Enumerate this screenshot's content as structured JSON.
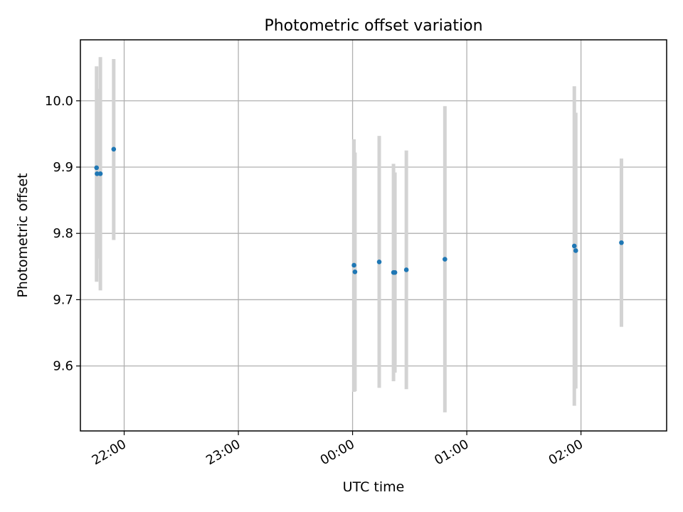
{
  "chart_data": {
    "type": "scatter",
    "title": "Photometric offset variation",
    "xlabel": "UTC time",
    "ylabel": "Photometric offset",
    "grid": true,
    "legend": "none",
    "x_ticks": [
      "22:00",
      "23:00",
      "00:00",
      "01:00",
      "02:00"
    ],
    "y_ticks": [
      9.6,
      9.7,
      9.8,
      9.9,
      10.0
    ],
    "x_tick_labels": [
      "22:00",
      "23:00",
      "00:00",
      "01:00",
      "02:00"
    ],
    "y_tick_labels": [
      "9.6",
      "9.7",
      "9.8",
      "9.9",
      "10.0"
    ],
    "xlim": [
      "21:37",
      "02:45"
    ],
    "ylim": [
      9.502,
      10.092
    ],
    "points": [
      {
        "x": "21:45:30",
        "y": 9.899,
        "yerr": [
          9.727,
          10.052
        ]
      },
      {
        "x": "21:45:45",
        "y": 9.89,
        "yerr": [
          9.762,
          10.018
        ]
      },
      {
        "x": "21:47:30",
        "y": 9.89,
        "yerr": [
          9.714,
          10.066
        ]
      },
      {
        "x": "21:54:30",
        "y": 9.927,
        "yerr": [
          9.79,
          10.063
        ]
      },
      {
        "x": "00:00:45",
        "y": 9.752,
        "yerr": [
          9.561,
          9.942
        ]
      },
      {
        "x": "00:01:15",
        "y": 9.742,
        "yerr": [
          9.562,
          9.922
        ]
      },
      {
        "x": "00:14:00",
        "y": 9.757,
        "yerr": [
          9.567,
          9.947
        ]
      },
      {
        "x": "00:21:30",
        "y": 9.741,
        "yerr": [
          9.577,
          9.905
        ]
      },
      {
        "x": "00:22:15",
        "y": 9.741,
        "yerr": [
          9.59,
          9.892
        ]
      },
      {
        "x": "00:28:15",
        "y": 9.745,
        "yerr": [
          9.565,
          9.925
        ]
      },
      {
        "x": "00:48:30",
        "y": 9.761,
        "yerr": [
          9.53,
          9.992
        ]
      },
      {
        "x": "01:56:30",
        "y": 9.781,
        "yerr": [
          9.54,
          10.022
        ]
      },
      {
        "x": "01:57:15",
        "y": 9.774,
        "yerr": [
          9.566,
          9.982
        ]
      },
      {
        "x": "02:21:15",
        "y": 9.786,
        "yerr": [
          9.659,
          9.913
        ]
      }
    ],
    "colors": {
      "point": "#1f77b4",
      "errorbar": "#d3d3d3",
      "grid": "#b0b0b0",
      "axes": "#000000"
    }
  }
}
